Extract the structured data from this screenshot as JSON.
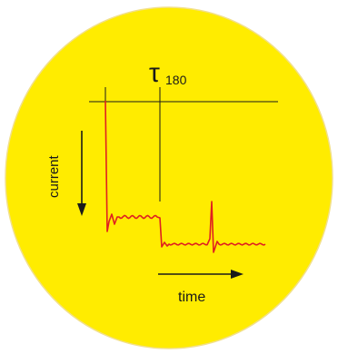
{
  "diagram": {
    "title_symbol": "τ",
    "title_subscript": "180",
    "y_axis_label": "current",
    "x_axis_label": "time",
    "colors": {
      "background_disc": "#ffec00",
      "disc_outline": "#f2e08a",
      "trace": "#e02020",
      "lines": "#1a1a1a"
    }
  }
}
